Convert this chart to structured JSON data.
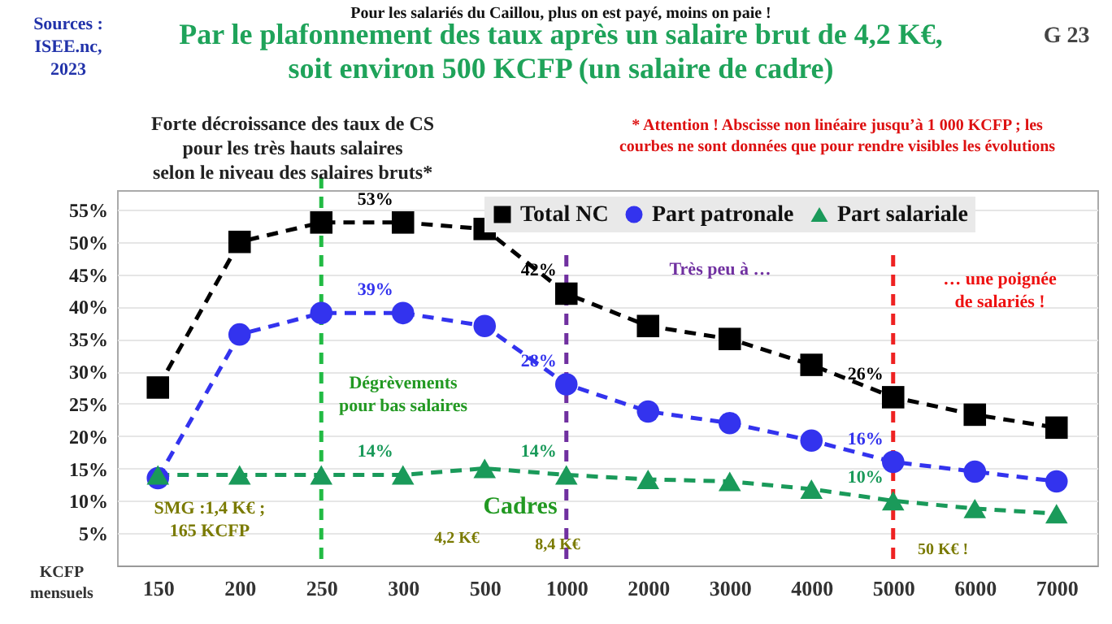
{
  "chart_data": {
    "type": "line",
    "title": "Par le plafonnement des taux après un salaire brut de 4,2 K€,\nsoit environ 500 KCFP (un salaire de cadre)",
    "subtitle": "Pour les salariés du Caillou, plus on est payé, moins on paie !",
    "xlabel": "KCFP\nmensuels",
    "categories": [
      "150",
      "200",
      "250",
      "300",
      "500",
      "1000",
      "2000",
      "3000",
      "4000",
      "5000",
      "6000",
      "7000"
    ],
    "series": [
      {
        "name": "Total NC",
        "color": "#000000",
        "marker": "square",
        "line_style": "dashed",
        "values": [
          27.5,
          50,
          53,
          53,
          52,
          42,
          37,
          35,
          31,
          26,
          23.3,
          21.3
        ],
        "value_labels": [
          null,
          null,
          null,
          "53%",
          null,
          "42%",
          null,
          null,
          null,
          "26%",
          null,
          null
        ]
      },
      {
        "name": "Part patronale",
        "color": "#3333ee",
        "marker": "circle",
        "line_style": "dashed",
        "values": [
          13.5,
          35.7,
          39,
          39,
          37,
          28,
          23.8,
          22,
          19.3,
          16,
          14.5,
          13
        ],
        "value_labels": [
          null,
          null,
          null,
          "39%",
          null,
          "28%",
          null,
          null,
          null,
          "16%",
          null,
          null
        ]
      },
      {
        "name": "Part salariale",
        "color": "#1a9a5a",
        "marker": "triangle",
        "line_style": "dashed",
        "values": [
          14,
          14,
          14,
          14,
          15,
          14,
          13.3,
          13,
          11.8,
          10,
          8.8,
          8
        ],
        "value_labels": [
          null,
          null,
          null,
          "14%",
          null,
          "14%",
          null,
          null,
          null,
          "10%",
          null,
          null
        ]
      }
    ],
    "ylim": [
      0,
      58
    ],
    "yticks": [
      {
        "value": 5,
        "label": "5%"
      },
      {
        "value": 10,
        "label": "10%"
      },
      {
        "value": 15,
        "label": "15%"
      },
      {
        "value": 20,
        "label": "20%"
      },
      {
        "value": 25,
        "label": "25%"
      },
      {
        "value": 30,
        "label": "30%"
      },
      {
        "value": 35,
        "label": "35%"
      },
      {
        "value": 40,
        "label": "40%"
      },
      {
        "value": 45,
        "label": "45%"
      },
      {
        "value": 50,
        "label": "50%"
      },
      {
        "value": 55,
        "label": "55%"
      }
    ],
    "grid": "y",
    "legend": "top right",
    "ref_lines": [
      {
        "axis": "x",
        "value": "250",
        "color": "#22bb44",
        "line_style": "dashed"
      },
      {
        "axis": "x",
        "value": "1000",
        "color": "#7030a0",
        "line_style": "dashed"
      },
      {
        "axis": "x",
        "value": "5000",
        "color": "#ee2222",
        "line_style": "dashed"
      }
    ],
    "annotations": [
      "Sources :\nISEE.nc,\n2023",
      "G 23",
      "Forte décroissance des taux de CS\npour les très hauts salaires\nselon le niveau des salaires bruts*",
      "* Attention ! Abscisse non linéaire jusqu’à 1 000 KCFP ;   les\ncourbes ne sont données que pour rendre visibles les évolutions",
      "Dégrèvements\npour bas salaires",
      "Très peu à …",
      "… une poignée\nde salariés !",
      "SMG :1,4 K€ ;\n165 KCFP",
      "Cadres",
      "4,2 K€",
      "8,4 K€",
      "50 K€ !"
    ]
  }
}
